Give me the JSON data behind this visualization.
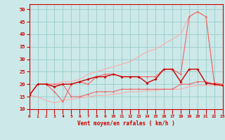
{
  "xlabel": "Vent moyen/en rafales ( km/h )",
  "xlim": [
    0,
    23
  ],
  "ylim": [
    10,
    52
  ],
  "xticks": [
    0,
    1,
    2,
    3,
    4,
    5,
    6,
    7,
    8,
    9,
    10,
    11,
    12,
    13,
    14,
    15,
    16,
    17,
    18,
    19,
    20,
    21,
    22,
    23
  ],
  "yticks": [
    10,
    15,
    20,
    25,
    30,
    35,
    40,
    45,
    50
  ],
  "bg": "#cce8e8",
  "grid_color": "#99cccc",
  "x": [
    0,
    1,
    2,
    3,
    4,
    5,
    6,
    7,
    8,
    9,
    10,
    11,
    12,
    13,
    14,
    15,
    16,
    17,
    18,
    19,
    20,
    21,
    22,
    23
  ],
  "y_main": [
    15.5,
    20,
    20,
    19,
    20,
    20,
    21,
    22,
    23,
    23,
    24,
    23,
    23,
    23,
    20.5,
    22,
    26,
    26,
    21,
    26,
    26,
    20.5,
    20,
    19.5
  ],
  "y_high": [
    15.5,
    20,
    20,
    17,
    13,
    20,
    21,
    20,
    23,
    24,
    24,
    23,
    23,
    23,
    23,
    23,
    26,
    26,
    24,
    47,
    49,
    47,
    20.5,
    20
  ],
  "y_low": [
    15.5,
    20,
    20,
    20,
    20,
    15,
    15,
    16,
    17,
    17,
    17,
    18,
    18,
    18,
    18,
    18,
    18,
    18,
    20,
    20,
    21,
    21,
    20,
    19.5
  ],
  "y_env_top": [
    15.5,
    20,
    20,
    20,
    21,
    21,
    22,
    24,
    25,
    26,
    27,
    28,
    29,
    31,
    33,
    34,
    36,
    38,
    40,
    47,
    49,
    47,
    20.5,
    19.5
  ],
  "y_env_bot": [
    15.5,
    15,
    13.5,
    12.5,
    13.5,
    14,
    14.5,
    15,
    15.5,
    15.5,
    16,
    16.5,
    17,
    17,
    17.5,
    17.5,
    18,
    18,
    18,
    19,
    19.5,
    19.5,
    19.5,
    19.5
  ],
  "c_dark": "#cc0000",
  "c_mid": "#ee6666",
  "c_light": "#ffaaaa"
}
